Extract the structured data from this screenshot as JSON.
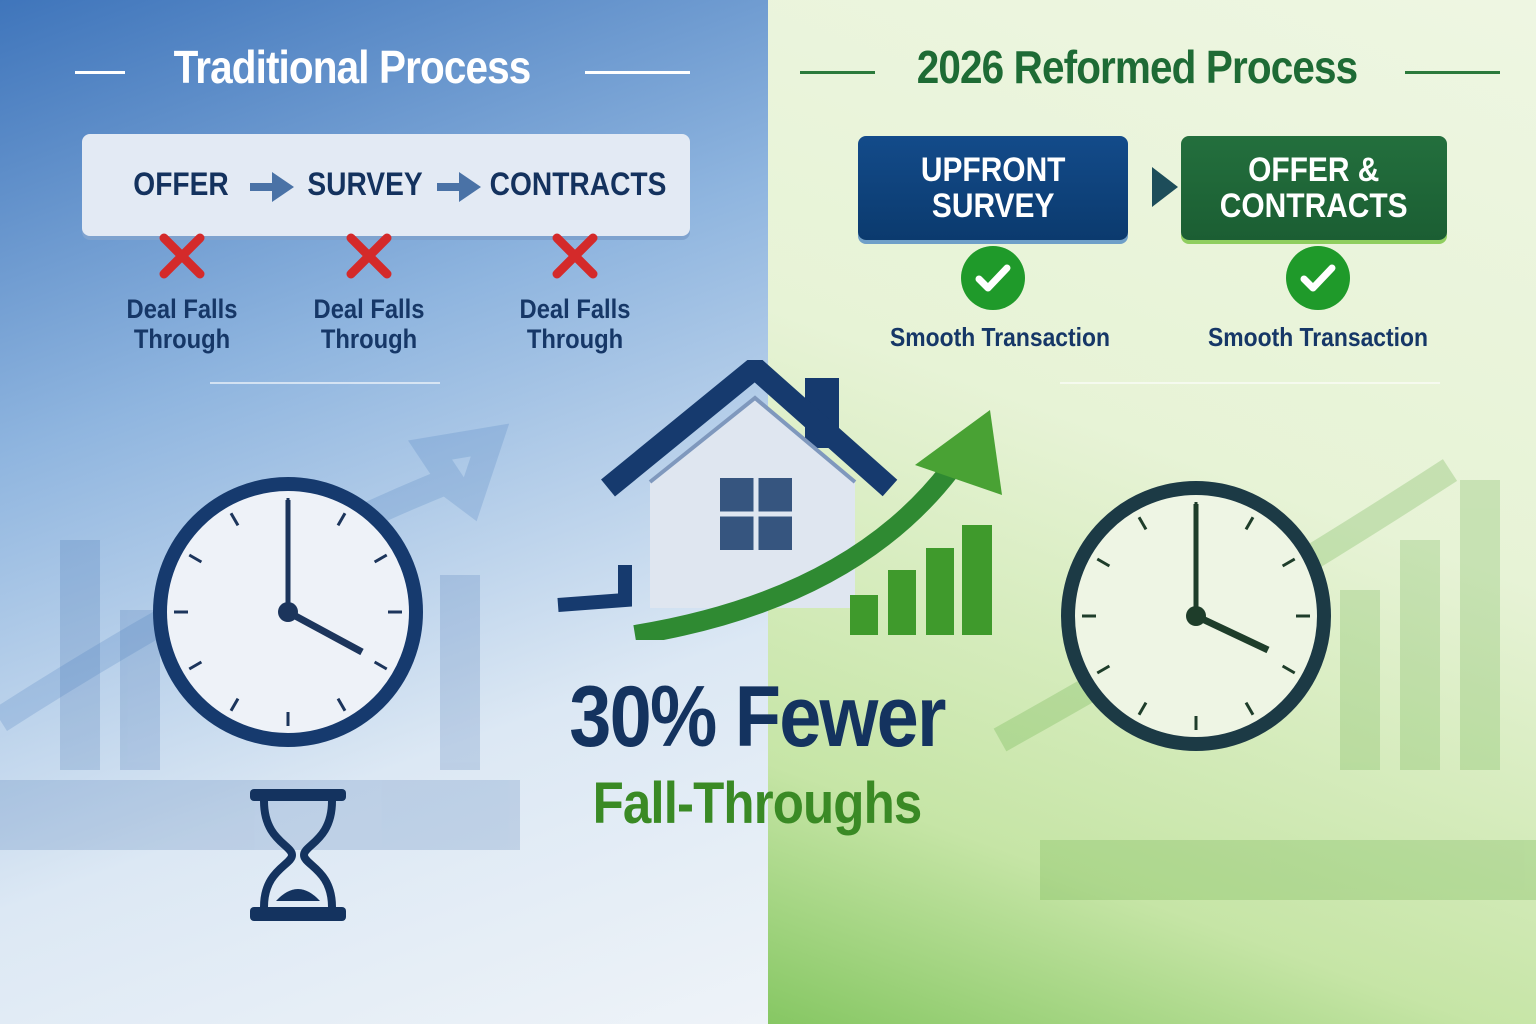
{
  "traditional": {
    "title": "Traditional Process",
    "steps": [
      "OFFER",
      "SURVEY",
      "CONTRACTS"
    ],
    "outcomes": [
      {
        "line1": "Deal Falls",
        "line2": "Through"
      },
      {
        "line1": "Deal Falls",
        "line2": "Through"
      },
      {
        "line1": "Deal Falls",
        "line2": "Through"
      }
    ],
    "outcome_icon": "x-mark-icon"
  },
  "reformed": {
    "title": "2026 Reformed Process",
    "steps": [
      {
        "line1": "UPFRONT",
        "line2": "SURVEY"
      },
      {
        "line1": "OFFER &",
        "line2": "CONTRACTS"
      }
    ],
    "outcomes": [
      "Smooth Transaction",
      "Smooth Transaction"
    ],
    "outcome_icon": "check-circle-icon"
  },
  "headline": {
    "stat": "30% Fewer",
    "subtitle": "Fall-Throughs"
  },
  "colors": {
    "navy": "#14335f",
    "blue_box": "#0f4580",
    "green_box": "#1f6b3a",
    "green_text": "#3a8a25",
    "red_x": "#d42a2a",
    "check_green": "#1f9a2a"
  }
}
